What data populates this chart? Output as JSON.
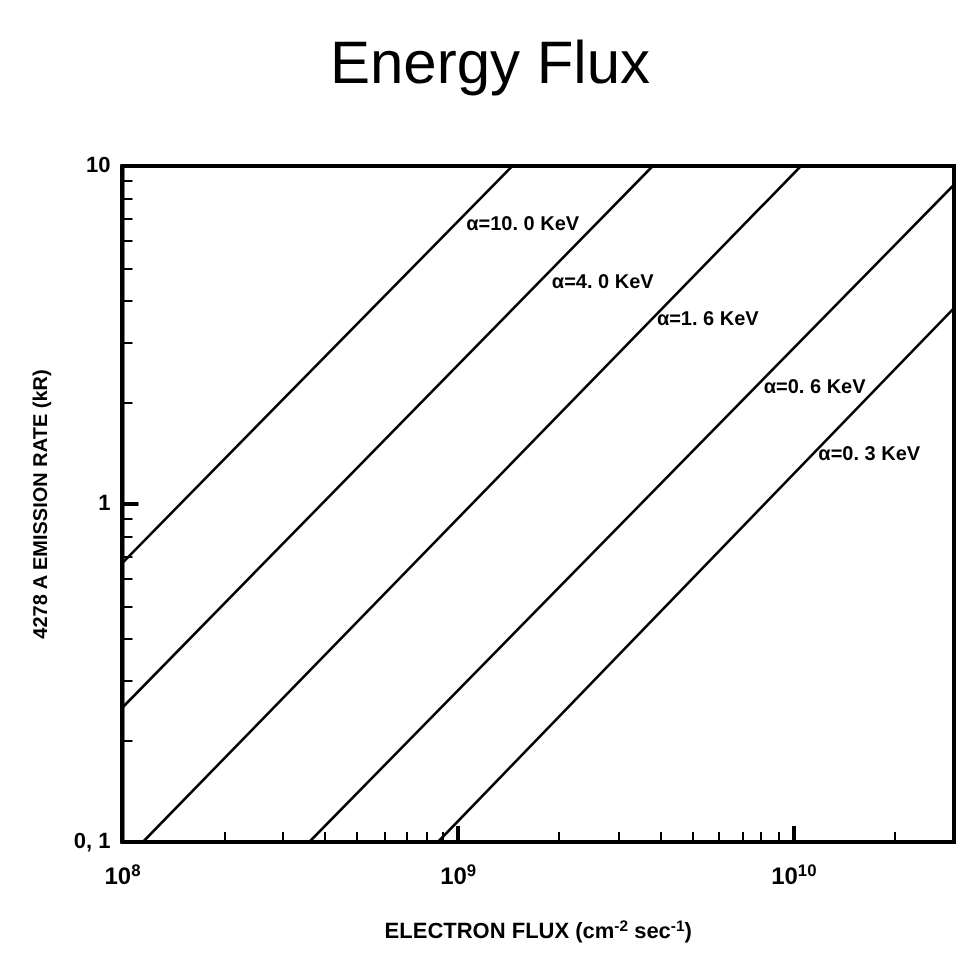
{
  "chart_data": {
    "type": "line",
    "title": "Energy Flux",
    "xlabel": "ELECTRON FLUX (cm$^{-2}$ sec$^{-1}$)",
    "ylabel": "4278 A EMISSION RATE (kR)",
    "log": "xy",
    "xlim": [
      100000000,
      30000000000
    ],
    "ylim": [
      0.1,
      10
    ],
    "xticks": [
      {
        "value": 100000000,
        "label": "10$^{8}$"
      },
      {
        "value": 1000000000,
        "label": "10$^{9}$"
      },
      {
        "value": 10000000000,
        "label": "10$^{10}$"
      }
    ],
    "yticks": [
      {
        "value": 0.1,
        "label": "0, 1"
      },
      1,
      10
    ],
    "marker": "none",
    "line_style": "solid",
    "grid": false,
    "series": [
      {
        "color": "#000000",
        "x": [
          100000000,
          1450000000
        ],
        "values": [
          0.67,
          10
        ]
      },
      {
        "color": "#000000",
        "x": [
          100000000,
          3800000000
        ],
        "values": [
          0.25,
          10
        ]
      },
      {
        "color": "#000000",
        "x": [
          115000000,
          10500000000
        ],
        "values": [
          0.1,
          10
        ]
      },
      {
        "color": "#000000",
        "x": [
          360000000,
          30000000000
        ],
        "values": [
          0.1,
          8.8
        ]
      },
      {
        "color": "#000000",
        "x": [
          870000000,
          30000000000
        ],
        "values": [
          0.1,
          3.8
        ]
      }
    ],
    "annotations": [
      {
        "text": "α=10. 0 KeV",
        "x": 1000000000,
        "y": 6.7
      },
      {
        "text": "α=4. 0 KeV",
        "x": 1800000000,
        "y": 4.5
      },
      {
        "text": "α=1. 6 KeV",
        "x": 3700000000,
        "y": 3.5
      },
      {
        "text": "α=0. 6 KeV",
        "x": 7700000000,
        "y": 2.2
      },
      {
        "text": "α=0. 3 KeV",
        "x": 11200000000,
        "y": 1.4
      }
    ]
  }
}
